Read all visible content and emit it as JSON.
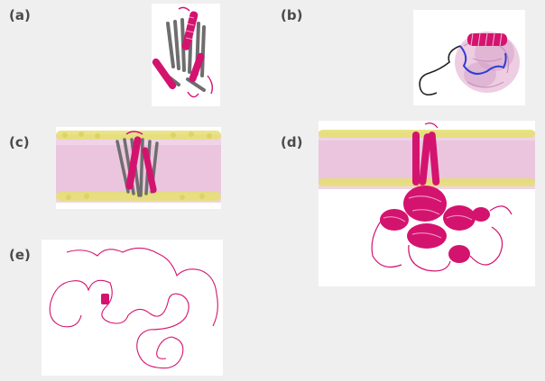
{
  "figure": {
    "panels": [
      {
        "id": "a",
        "label": "(a)"
      },
      {
        "id": "b",
        "label": "(b)"
      },
      {
        "id": "c",
        "label": "(c)"
      },
      {
        "id": "d",
        "label": "(d)"
      },
      {
        "id": "e",
        "label": "(e)"
      }
    ]
  },
  "colors": {
    "background": "#efefef",
    "panel_bg": "#ffffff",
    "helix_magenta": "#d4136f",
    "beta_gray": "#6e6e6e",
    "membrane_pink": "#e8bcd8",
    "headgroup_yellow": "#e6e070",
    "loop_blue": "#2a3fd6",
    "tail_black": "#222222"
  }
}
